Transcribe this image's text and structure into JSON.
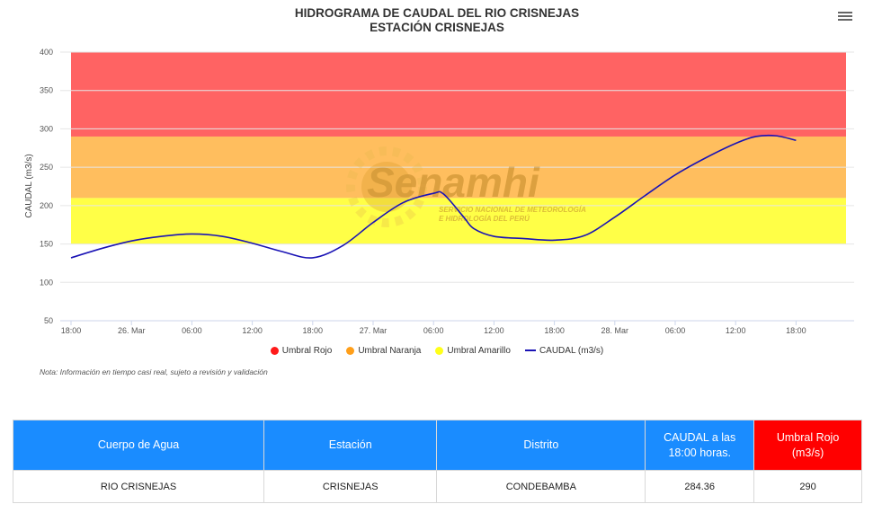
{
  "title_line1": "HIDROGRAMA DE CAUDAL DEL RIO CRISNEJAS",
  "title_line2": "ESTACIÓN CRISNEJAS",
  "menu_icon": "hamburger-menu-icon",
  "watermark": {
    "brand": "Senamhi",
    "sub_line1": "SERVICIO NACIONAL DE METEOROLOGÍA",
    "sub_line2": "E HIDROLOGÍA DEL PERÚ"
  },
  "chart_data": {
    "type": "line",
    "title": "HIDROGRAMA DE CAUDAL DEL RIO CRISNEJAS",
    "subtitle": "ESTACIÓN CRISNEJAS",
    "ylabel": "CAUDAL (m3/s)",
    "xlabel": "",
    "ylim": [
      50,
      400
    ],
    "yticks": [
      50,
      100,
      150,
      200,
      250,
      300,
      350,
      400
    ],
    "x_unit": "hours",
    "xlim": [
      0,
      81
    ],
    "xticks": [
      {
        "x": 0,
        "label": "18:00"
      },
      {
        "x": 6,
        "label": "26. Mar"
      },
      {
        "x": 12,
        "label": "06:00"
      },
      {
        "x": 18,
        "label": "12:00"
      },
      {
        "x": 24,
        "label": "18:00"
      },
      {
        "x": 30,
        "label": "27. Mar"
      },
      {
        "x": 36,
        "label": "06:00"
      },
      {
        "x": 42,
        "label": "12:00"
      },
      {
        "x": 48,
        "label": "18:00"
      },
      {
        "x": 54,
        "label": "28. Mar"
      },
      {
        "x": 60,
        "label": "06:00"
      },
      {
        "x": 66,
        "label": "12:00"
      },
      {
        "x": 72,
        "label": "18:00"
      }
    ],
    "bands": [
      {
        "name": "Umbral Amarillo",
        "from": 150,
        "to": 210,
        "color": "#ffff33"
      },
      {
        "name": "Umbral Naranja",
        "from": 210,
        "to": 290,
        "color": "#ffb74d"
      },
      {
        "name": "Umbral Rojo",
        "from": 290,
        "to": 400,
        "color": "#ff5252"
      }
    ],
    "series": [
      {
        "name": "CAUDAL (m3/s)",
        "color": "#1a13b5",
        "points": [
          [
            0,
            132
          ],
          [
            3,
            144
          ],
          [
            6,
            154
          ],
          [
            9,
            160
          ],
          [
            12,
            163
          ],
          [
            15,
            160
          ],
          [
            18,
            151
          ],
          [
            21,
            140
          ],
          [
            24,
            132
          ],
          [
            27,
            148
          ],
          [
            30,
            178
          ],
          [
            33,
            204
          ],
          [
            36,
            216
          ],
          [
            37,
            215
          ],
          [
            39,
            185
          ],
          [
            40,
            170
          ],
          [
            42,
            160
          ],
          [
            45,
            157
          ],
          [
            48,
            155
          ],
          [
            51,
            161
          ],
          [
            54,
            185
          ],
          [
            57,
            213
          ],
          [
            60,
            240
          ],
          [
            63,
            262
          ],
          [
            66,
            281
          ],
          [
            68,
            290
          ],
          [
            70,
            291
          ],
          [
            72,
            285
          ]
        ]
      }
    ],
    "legend": [
      {
        "label": "Umbral Rojo",
        "color": "#ff1a1a",
        "shape": "dot"
      },
      {
        "label": "Umbral Naranja",
        "color": "#ff9f1a",
        "shape": "dot"
      },
      {
        "label": "Umbral Amarillo",
        "color": "#ffff1a",
        "shape": "dot"
      },
      {
        "label": "CAUDAL (m3/s)",
        "color": "#1a13b5",
        "shape": "line"
      }
    ],
    "legend_position": "bottom-center",
    "grid": true
  },
  "note": "Nota: Información en tiempo casi real, sujeto a revisión y validación",
  "table": {
    "headers": [
      {
        "label": "Cuerpo de Agua",
        "color": "#1a8cff"
      },
      {
        "label": "Estación",
        "color": "#1a8cff"
      },
      {
        "label": "Distrito",
        "color": "#1a8cff"
      },
      {
        "label": "CAUDAL a las 18:00 horas.",
        "color": "#1a8cff"
      },
      {
        "label": "Umbral Rojo (m3/s)",
        "color": "#ff0000"
      }
    ],
    "row": [
      "RIO CRISNEJAS",
      "CRISNEJAS",
      "CONDEBAMBA",
      "284.36",
      "290"
    ]
  }
}
